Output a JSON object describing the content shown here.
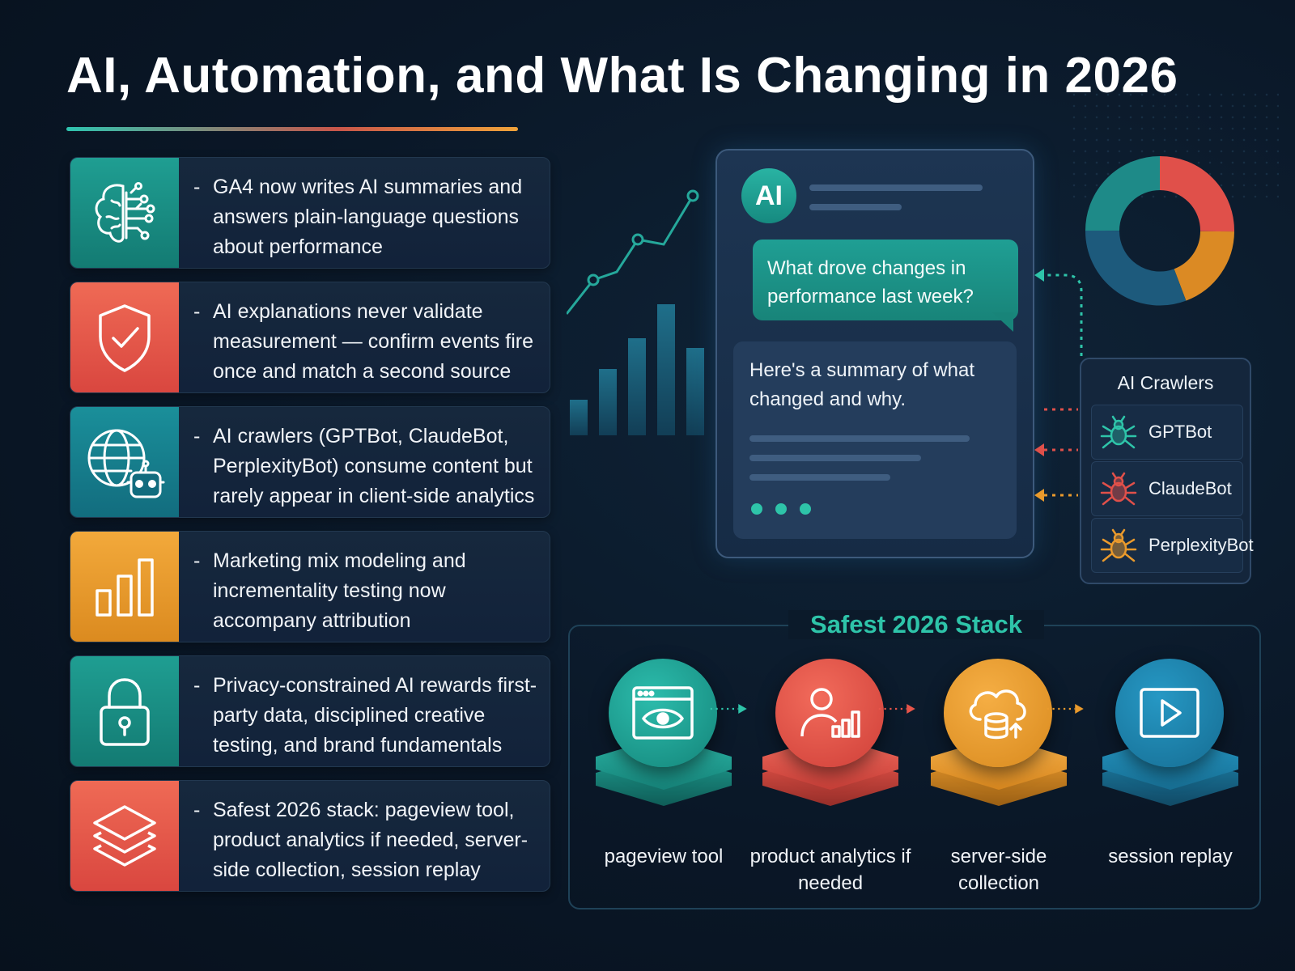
{
  "title": "AI, Automation, and What Is Changing in 2026",
  "cards": [
    {
      "icon": "brain-circuit-icon",
      "color": "#1a9a8e",
      "text": "GA4 now writes AI summaries and answers plain-language questions about performance"
    },
    {
      "icon": "shield-check-icon",
      "color": "#e8554a",
      "text": "AI explanations never validate measurement — confirm events fire once and match a second source"
    },
    {
      "icon": "globe-robot-icon",
      "color": "#168294",
      "text": "AI crawlers (GPTBot, ClaudeBot, PerplexityBot) consume content but rarely appear in client-side analytics"
    },
    {
      "icon": "bar-chart-icon",
      "color": "#ea9a2c",
      "text": "Marketing mix modeling and incrementality testing now accompany attribution"
    },
    {
      "icon": "padlock-icon",
      "color": "#1a9a8e",
      "text": "Privacy-constrained AI rewards first-party data, disciplined creative testing, and brand fundamentals"
    },
    {
      "icon": "layers-icon",
      "color": "#e8554a",
      "text": "Safest 2026 stack: pageview tool, product analytics if needed, server-side collection, session replay"
    }
  ],
  "chat": {
    "badge": "AI",
    "question": "What drove changes in performance last week?",
    "answer": "Here's a summary of what changed and why."
  },
  "crawlers": {
    "title": "AI Crawlers",
    "items": [
      {
        "name": "GPTBot",
        "color": "#2ec4a9"
      },
      {
        "name": "ClaudeBot",
        "color": "#e8554a"
      },
      {
        "name": "PerplexityBot",
        "color": "#ea9a2c"
      }
    ]
  },
  "stack": {
    "title": "Safest 2026 Stack",
    "steps": [
      {
        "label": "pageview tool",
        "icon": "browser-eye-icon",
        "color": "#1a9a8e"
      },
      {
        "label": "product analytics if needed",
        "icon": "user-chart-icon",
        "color": "#e8554a"
      },
      {
        "label": "server-side collection",
        "icon": "cloud-database-icon",
        "color": "#ea9a2c"
      },
      {
        "label": "session replay",
        "icon": "play-screen-icon",
        "color": "#1c7fa6"
      }
    ]
  },
  "colors": {
    "background": "#0a1727",
    "teal": "#2ec4a9",
    "coral": "#e8554a",
    "orange": "#ea9a2c",
    "blue": "#1c7fa6"
  }
}
